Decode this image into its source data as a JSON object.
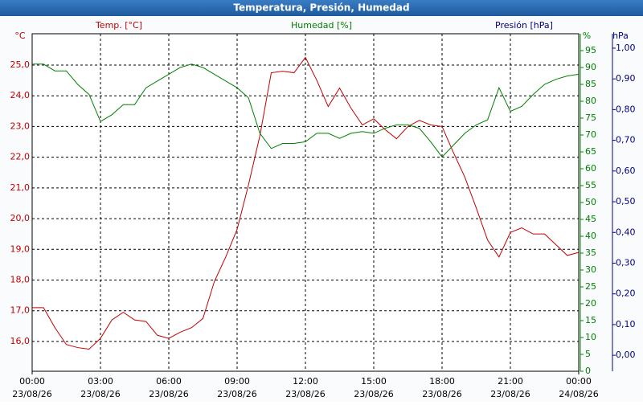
{
  "chart_data": {
    "type": "line",
    "title": "Temperatura, Presión, Humedad",
    "grid": true,
    "x": [
      0,
      0.5,
      1,
      1.5,
      2,
      2.5,
      3,
      3.5,
      4,
      4.5,
      5,
      5.5,
      6,
      6.5,
      7,
      7.5,
      8,
      8.5,
      9,
      9.5,
      10,
      10.5,
      11,
      11.5,
      12,
      12.5,
      13,
      13.5,
      14,
      14.5,
      15,
      15.5,
      16,
      16.5,
      17,
      17.5,
      18,
      18.5,
      19,
      19.5,
      20,
      20.5,
      21,
      21.5,
      22,
      22.5,
      23,
      23.5,
      24
    ],
    "xlim": [
      0,
      24
    ],
    "xticks": [
      {
        "value": 0,
        "label": "00:00"
      },
      {
        "value": 3,
        "label": "03:00"
      },
      {
        "value": 6,
        "label": "06:00"
      },
      {
        "value": 9,
        "label": "09:00"
      },
      {
        "value": 12,
        "label": "12:00"
      },
      {
        "value": 15,
        "label": "15:00"
      },
      {
        "value": 18,
        "label": "18:00"
      },
      {
        "value": 21,
        "label": "21:00"
      },
      {
        "value": 24,
        "label": "00:00"
      }
    ],
    "xtick_dates": [
      "23/08/26",
      "23/08/26",
      "23/08/26",
      "23/08/26",
      "23/08/26",
      "23/08/26",
      "23/08/26",
      "23/08/26",
      "24/08/26"
    ],
    "y_unit": "°C",
    "ylim": [
      15.03,
      26.02
    ],
    "yticks": [
      {
        "value": 16,
        "label": "16,0"
      },
      {
        "value": 17,
        "label": "17,0"
      },
      {
        "value": 18,
        "label": "18,0"
      },
      {
        "value": 19,
        "label": "19,0"
      },
      {
        "value": 20,
        "label": "20,0"
      },
      {
        "value": 21,
        "label": "21,0"
      },
      {
        "value": 22,
        "label": "22,0"
      },
      {
        "value": 23,
        "label": "23,0"
      },
      {
        "value": 24,
        "label": "24,0"
      },
      {
        "value": 25,
        "label": "25,0"
      }
    ],
    "y2_unit": "%",
    "y2lim": [
      0,
      100
    ],
    "y2ticks": [
      0,
      5,
      10,
      15,
      20,
      25,
      30,
      35,
      40,
      45,
      50,
      55,
      60,
      65,
      70,
      75,
      80,
      85,
      90,
      95
    ],
    "y3_label": "Presión [hPa]",
    "y3_unit": "hPa",
    "y3_color": "#000080",
    "y3lim": [
      -0.052,
      1.047
    ],
    "y3ticks": [
      {
        "value": 0,
        "label": "0,00"
      },
      {
        "value": 0.1,
        "label": "0,10"
      },
      {
        "value": 0.2,
        "label": "0,20"
      },
      {
        "value": 0.3,
        "label": "0,30"
      },
      {
        "value": 0.4,
        "label": "0,40"
      },
      {
        "value": 0.5,
        "label": "0,50"
      },
      {
        "value": 0.6,
        "label": "0,60"
      },
      {
        "value": 0.7,
        "label": "0,70"
      },
      {
        "value": 0.8,
        "label": "0,80"
      },
      {
        "value": 0.9,
        "label": "0,90"
      },
      {
        "value": 1,
        "label": "1,00"
      }
    ],
    "series": [
      {
        "name": "Temp. [°C]",
        "color": "#c00000",
        "axis": "y",
        "values": [
          17.1,
          17.1,
          16.45,
          15.9,
          15.8,
          15.75,
          16.1,
          16.7,
          16.95,
          16.7,
          16.65,
          16.2,
          16.1,
          16.3,
          16.45,
          16.75,
          17.95,
          18.75,
          19.65,
          21.1,
          22.7,
          24.75,
          24.8,
          24.75,
          25.25,
          24.5,
          23.65,
          24.25,
          23.6,
          23.05,
          23.25,
          22.9,
          22.6,
          23.0,
          23.2,
          23.05,
          23.0,
          22.15,
          21.35,
          20.35,
          19.3,
          18.75,
          19.55,
          19.7,
          19.5,
          19.5,
          19.15,
          18.8,
          18.9
        ]
      },
      {
        "name": "Humedad [%]",
        "color": "#008000",
        "axis": "y2",
        "values": [
          91,
          91,
          89,
          89,
          85,
          82,
          74,
          76,
          79,
          79,
          84,
          86,
          88,
          90,
          91,
          90,
          88,
          86,
          84,
          81,
          70.5,
          66,
          67.5,
          67.5,
          68,
          70.5,
          70.5,
          69,
          70.5,
          71,
          70.5,
          72,
          73,
          73,
          72,
          68,
          63.5,
          67,
          70.5,
          73,
          74.5,
          84,
          77,
          78.5,
          82,
          85,
          86.5,
          87.5,
          88
        ]
      }
    ]
  }
}
